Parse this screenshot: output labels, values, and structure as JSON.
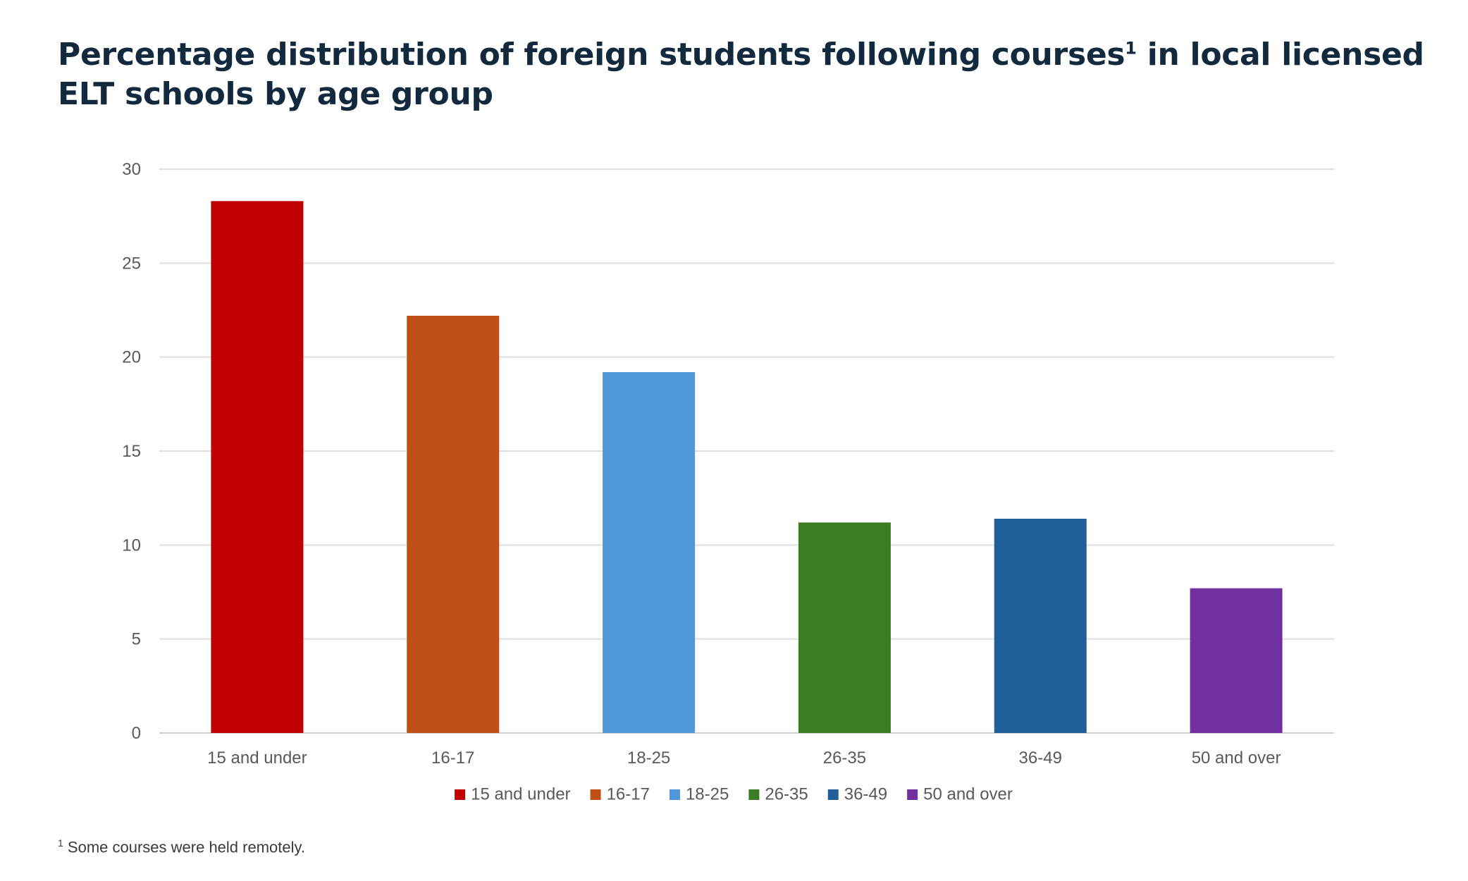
{
  "title": {
    "before": "Percentage distribution of foreign students following courses",
    "sup": "1",
    "after": " in local licensed ELT schools by age group"
  },
  "footnote": {
    "marker": "1",
    "text": "Some courses were held remotely."
  },
  "chart_data": {
    "type": "bar",
    "categories": [
      "15 and under",
      "16-17",
      "18-25",
      "26-35",
      "36-49",
      "50 and over"
    ],
    "values": [
      28.3,
      22.2,
      19.2,
      11.2,
      11.4,
      7.7
    ],
    "colors": [
      "#c00000",
      "#c04f15",
      "#4f97d9",
      "#3a7d22",
      "#215f9a",
      "#7030a0"
    ],
    "ylim": [
      0,
      30
    ],
    "yticks": [
      0,
      5,
      10,
      15,
      20,
      25,
      30
    ],
    "grid": true,
    "legend": {
      "position": "bottom",
      "entries": [
        "15 and under",
        "16-17",
        "18-25",
        "26-35",
        "36-49",
        "50 and over"
      ]
    }
  }
}
